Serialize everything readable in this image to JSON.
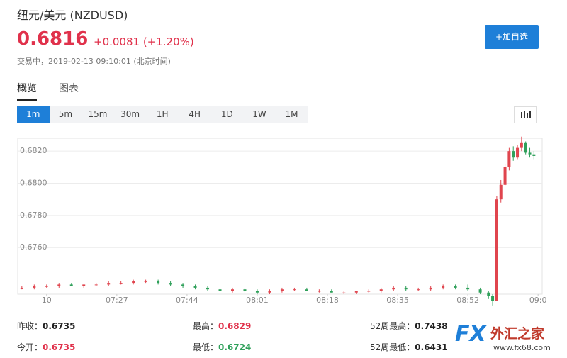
{
  "header": {
    "title": "纽元/美元 (NZDUSD)",
    "price": "0.6816",
    "change": "+0.0081 (+1.20%)",
    "status": "交易中，2019-02-13 09:10:01 (北京时间)",
    "button": "+加自选"
  },
  "tabs": [
    "概览",
    "图表"
  ],
  "intervals": [
    "1m",
    "5m",
    "15m",
    "30m",
    "1H",
    "4H",
    "1D",
    "1W",
    "1M"
  ],
  "chart_data": {
    "type": "candlestick",
    "up_color": "#e0454e",
    "down_color": "#2fa05a",
    "grid": true,
    "xlim": [
      423,
      550
    ],
    "ylim": [
      0.6731,
      0.6828
    ],
    "xticks": [
      {
        "value": 430,
        "label": "10"
      },
      {
        "value": 447,
        "label": "07:27"
      },
      {
        "value": 464,
        "label": "07:44"
      },
      {
        "value": 481,
        "label": "08:01"
      },
      {
        "value": 498,
        "label": "08:18"
      },
      {
        "value": 515,
        "label": "08:35"
      },
      {
        "value": 532,
        "label": "08:52"
      },
      {
        "value": 549,
        "label": "09:0"
      }
    ],
    "yticks": [
      {
        "value": 0.676,
        "label": "0.6760"
      },
      {
        "value": 0.678,
        "label": "0.6780"
      },
      {
        "value": 0.68,
        "label": "0.6800"
      },
      {
        "value": 0.682,
        "label": "0.6820"
      }
    ],
    "x": [
      424,
      427,
      430,
      433,
      436,
      439,
      442,
      445,
      448,
      451,
      454,
      457,
      460,
      463,
      466,
      469,
      472,
      475,
      478,
      481,
      484,
      487,
      490,
      493,
      496,
      499,
      502,
      505,
      508,
      511,
      514,
      517,
      520,
      523,
      526,
      529,
      532,
      535,
      537,
      538,
      539,
      540,
      541,
      542,
      543,
      544,
      545,
      546,
      547,
      548
    ],
    "open": [
      0.6735,
      0.6735,
      0.6736,
      0.6736,
      0.6737,
      0.6736,
      0.6737,
      0.6737,
      0.6738,
      0.6738,
      0.6739,
      0.6739,
      0.6738,
      0.6737,
      0.6736,
      0.6735,
      0.6734,
      0.6733,
      0.6734,
      0.6733,
      0.6732,
      0.6733,
      0.6734,
      0.6734,
      0.6733,
      0.6733,
      0.6732,
      0.6732,
      0.6733,
      0.6733,
      0.6734,
      0.6735,
      0.6734,
      0.6734,
      0.6735,
      0.6736,
      0.6735,
      0.6734,
      0.6732,
      0.673,
      0.6727,
      0.679,
      0.6799,
      0.681,
      0.682,
      0.6816,
      0.6822,
      0.6825,
      0.6819,
      0.6818
    ],
    "high": [
      0.6736,
      0.6737,
      0.6737,
      0.6738,
      0.6738,
      0.6737,
      0.6738,
      0.6739,
      0.6739,
      0.674,
      0.674,
      0.674,
      0.6739,
      0.6738,
      0.6737,
      0.6736,
      0.6735,
      0.6735,
      0.6735,
      0.6734,
      0.6734,
      0.6735,
      0.6735,
      0.6735,
      0.6734,
      0.6734,
      0.6733,
      0.6733,
      0.6734,
      0.6735,
      0.6736,
      0.6736,
      0.6735,
      0.6736,
      0.6737,
      0.6737,
      0.6737,
      0.6735,
      0.6733,
      0.6731,
      0.6792,
      0.6802,
      0.6812,
      0.6822,
      0.6823,
      0.6824,
      0.6829,
      0.6826,
      0.6822,
      0.682
    ],
    "low": [
      0.6734,
      0.6734,
      0.6735,
      0.6735,
      0.6736,
      0.6735,
      0.6736,
      0.6736,
      0.6737,
      0.6737,
      0.6738,
      0.6737,
      0.6736,
      0.6735,
      0.6734,
      0.6733,
      0.6732,
      0.6732,
      0.6732,
      0.6731,
      0.6731,
      0.6732,
      0.6733,
      0.6733,
      0.6732,
      0.6732,
      0.6731,
      0.6731,
      0.6732,
      0.6732,
      0.6733,
      0.6733,
      0.6733,
      0.6733,
      0.6734,
      0.6734,
      0.6733,
      0.6731,
      0.6728,
      0.6724,
      0.6727,
      0.6788,
      0.6798,
      0.6808,
      0.6814,
      0.6815,
      0.682,
      0.6818,
      0.6816,
      0.6815
    ],
    "close": [
      0.6735,
      0.6736,
      0.6736,
      0.6737,
      0.6736,
      0.6737,
      0.6737,
      0.6738,
      0.6738,
      0.6739,
      0.6739,
      0.6738,
      0.6737,
      0.6736,
      0.6735,
      0.6734,
      0.6733,
      0.6734,
      0.6733,
      0.6732,
      0.6733,
      0.6734,
      0.6734,
      0.6733,
      0.6733,
      0.6732,
      0.6732,
      0.6733,
      0.6733,
      0.6734,
      0.6735,
      0.6734,
      0.6734,
      0.6735,
      0.6736,
      0.6735,
      0.6734,
      0.6732,
      0.673,
      0.6727,
      0.679,
      0.6799,
      0.681,
      0.682,
      0.6816,
      0.6822,
      0.6825,
      0.6819,
      0.6818,
      0.6817
    ]
  },
  "stats": [
    {
      "label": "昨收：",
      "value": "0.6735"
    },
    {
      "label": "最高：",
      "value": "0.6829"
    },
    {
      "label": "52周最高：",
      "value": "0.7438"
    },
    {
      "label": "今开：",
      "value": "0.6735"
    },
    {
      "label": "最低：",
      "value": "0.6724"
    },
    {
      "label": "52周最低：",
      "value": "0.6431"
    }
  ],
  "watermark": {
    "logo": "FX",
    "name": "外汇之家",
    "url": "www.fx68.com"
  }
}
